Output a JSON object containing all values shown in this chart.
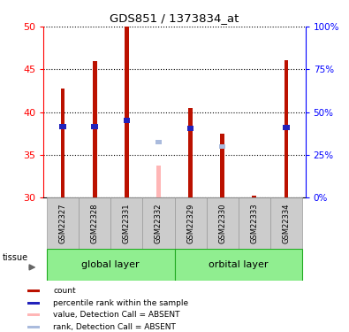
{
  "title": "GDS851 / 1373834_at",
  "samples": [
    "GSM22327",
    "GSM22328",
    "GSM22331",
    "GSM22332",
    "GSM22329",
    "GSM22330",
    "GSM22333",
    "GSM22334"
  ],
  "red_values": [
    42.7,
    46.0,
    50.0,
    null,
    40.5,
    37.5,
    30.2,
    46.1
  ],
  "blue_values": [
    38.3,
    38.3,
    39.0,
    null,
    38.1,
    null,
    null,
    38.2
  ],
  "pink_value": [
    null,
    null,
    null,
    33.7,
    null,
    null,
    null,
    null
  ],
  "light_blue_value": [
    null,
    null,
    null,
    36.5,
    null,
    36.0,
    null,
    null
  ],
  "groups": [
    {
      "label": "global layer",
      "start": 0,
      "end": 4
    },
    {
      "label": "orbital layer",
      "start": 4,
      "end": 8
    }
  ],
  "ylim": [
    30,
    50
  ],
  "yticks_left": [
    30,
    35,
    40,
    45,
    50
  ],
  "yticks_right": [
    0,
    25,
    50,
    75,
    100
  ],
  "bar_width": 0.13,
  "red_color": "#BB1100",
  "blue_color": "#2222BB",
  "pink_color": "#FFB6B6",
  "light_blue_color": "#AABBDD",
  "tissue_label": "tissue",
  "legend_items": [
    {
      "color": "#BB1100",
      "label": "count"
    },
    {
      "color": "#2222BB",
      "label": "percentile rank within the sample"
    },
    {
      "color": "#FFB6B6",
      "label": "value, Detection Call = ABSENT"
    },
    {
      "color": "#AABBDD",
      "label": "rank, Detection Call = ABSENT"
    }
  ]
}
